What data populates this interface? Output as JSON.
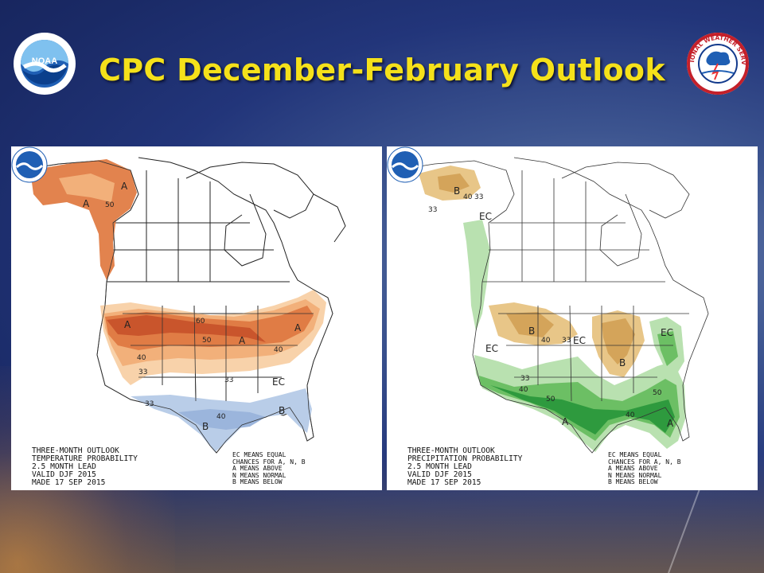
{
  "title": "CPC December-February Outlook",
  "logos": {
    "left": "NOAA",
    "right": "NATIONAL WEATHER SERVICE"
  },
  "colors": {
    "title": "#f5e11a",
    "above_dark": "#c9552c",
    "above_mid": "#e07c45",
    "above_light": "#f2b07a",
    "above_pale": "#f8d2aa",
    "below_light": "#b9cde8",
    "below_mid": "#9bb5dc",
    "precip_below_light": "#e8c688",
    "precip_below_mid": "#d4a45a",
    "precip_above_light": "#b9e1b0",
    "precip_above_mid": "#6cbf64",
    "precip_above_dark": "#2e9a3e"
  },
  "panels": [
    {
      "id": "temperature",
      "caption_left": [
        "THREE-MONTH OUTLOOK",
        "TEMPERATURE PROBABILITY",
        "2.5 MONTH LEAD",
        "VALID DJF 2015",
        "MADE 17 SEP 2015"
      ],
      "caption_right": [
        "EC MEANS EQUAL",
        "CHANCES FOR A, N, B",
        "A MEANS ABOVE",
        "N MEANS NORMAL",
        "B MEANS BELOW"
      ],
      "labels": [
        "A",
        "A",
        "50",
        "A",
        "60",
        "50",
        "40",
        "A",
        "A",
        "40",
        "33",
        "33",
        "EC",
        "33",
        "40",
        "B",
        "B"
      ]
    },
    {
      "id": "precipitation",
      "caption_left": [
        "THREE-MONTH OUTLOOK",
        "PRECIPITATION PROBABILITY",
        "2.5 MONTH LEAD",
        "VALID DJF 2015",
        "MADE 17 SEP 2015"
      ],
      "caption_right": [
        "EC MEANS EQUAL",
        "CHANCES FOR A, N, B",
        "A MEANS ABOVE",
        "N MEANS NORMAL",
        "B MEANS BELOW"
      ],
      "labels": [
        "B",
        "40",
        "33",
        "33",
        "EC",
        "B",
        "40",
        "33",
        "EC",
        "EC",
        "EC",
        "B",
        "33",
        "40",
        "50",
        "A",
        "40",
        "50",
        "A"
      ]
    }
  ]
}
